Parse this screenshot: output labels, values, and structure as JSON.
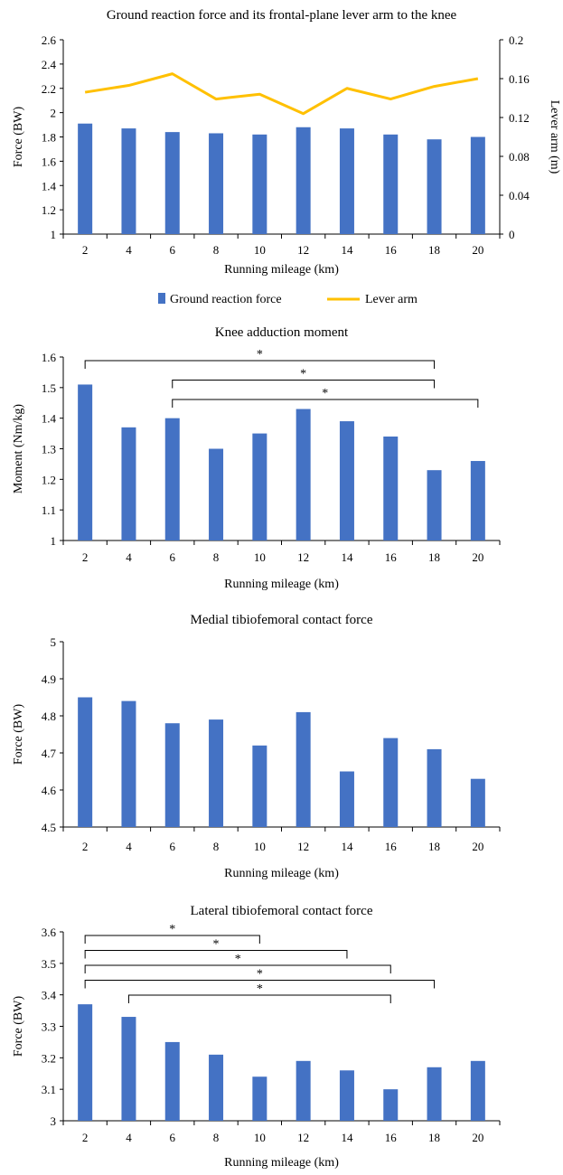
{
  "bar_color": "#4472C4",
  "line_color": "#FFC000",
  "axis_color": "#000000",
  "chart_data": [
    {
      "type": "bar+line",
      "title": "Ground reaction force and its frontal-plane lever arm to the knee",
      "xlabel": "Running mileage (km)",
      "ylabel": "Force (BW)",
      "y2label": "Lever arm (m)",
      "categories": [
        "2",
        "4",
        "6",
        "8",
        "10",
        "12",
        "14",
        "16",
        "18",
        "20"
      ],
      "ylim": [
        1,
        2.6
      ],
      "yticks": [
        "1",
        "1.2",
        "1.4",
        "1.6",
        "1.8",
        "2",
        "2.2",
        "2.4",
        "2.6"
      ],
      "y2lim": [
        0,
        0.2
      ],
      "y2ticks": [
        "0",
        "0.04",
        "0.08",
        "0.12",
        "0.16",
        "0.2"
      ],
      "series": [
        {
          "name": "Ground reaction force",
          "kind": "bar",
          "axis": "left",
          "values": [
            1.91,
            1.87,
            1.84,
            1.83,
            1.82,
            1.88,
            1.87,
            1.82,
            1.78,
            1.8
          ]
        },
        {
          "name": "Lever arm",
          "kind": "line",
          "axis": "right",
          "values": [
            0.146,
            0.153,
            0.165,
            0.139,
            0.144,
            0.124,
            0.15,
            0.139,
            0.152,
            0.16
          ]
        }
      ],
      "legend": "bottom",
      "grid": false
    },
    {
      "type": "bar",
      "title": "Knee adduction moment",
      "xlabel": "Running mileage (km)",
      "ylabel": "Moment (Nm/kg)",
      "categories": [
        "2",
        "4",
        "6",
        "8",
        "10",
        "12",
        "14",
        "16",
        "18",
        "20"
      ],
      "values": [
        1.51,
        1.37,
        1.4,
        1.3,
        1.35,
        1.43,
        1.39,
        1.34,
        1.23,
        1.26
      ],
      "ylim": [
        1,
        1.6
      ],
      "yticks": [
        "1",
        "1.1",
        "1.2",
        "1.3",
        "1.4",
        "1.5",
        "1.6"
      ],
      "grid": false,
      "annotations": [
        {
          "from": "2",
          "to": "18",
          "label": "*"
        },
        {
          "from": "6",
          "to": "18",
          "label": "*"
        },
        {
          "from": "6",
          "to": "20",
          "label": "*"
        }
      ]
    },
    {
      "type": "bar",
      "title": "Medial tibiofemoral contact force",
      "xlabel": "Running mileage (km)",
      "ylabel": "Force (BW)",
      "categories": [
        "2",
        "4",
        "6",
        "8",
        "10",
        "12",
        "14",
        "16",
        "18",
        "20"
      ],
      "values": [
        4.85,
        4.84,
        4.78,
        4.79,
        4.72,
        4.81,
        4.65,
        4.74,
        4.71,
        4.63
      ],
      "ylim": [
        4.5,
        5
      ],
      "yticks": [
        "4.5",
        "4.6",
        "4.7",
        "4.8",
        "4.9",
        "5"
      ],
      "grid": false,
      "annotations": []
    },
    {
      "type": "bar",
      "title": "Lateral tibiofemoral contact force",
      "xlabel": "Running mileage (km)",
      "ylabel": "Force (BW)",
      "categories": [
        "2",
        "4",
        "6",
        "8",
        "10",
        "12",
        "14",
        "16",
        "18",
        "20"
      ],
      "values": [
        3.37,
        3.33,
        3.25,
        3.21,
        3.14,
        3.19,
        3.16,
        3.1,
        3.17,
        3.19
      ],
      "ylim": [
        3,
        3.6
      ],
      "yticks": [
        "3",
        "3.1",
        "3.2",
        "3.3",
        "3.4",
        "3.5",
        "3.6"
      ],
      "grid": false,
      "annotations": [
        {
          "from": "2",
          "to": "10",
          "label": "*"
        },
        {
          "from": "2",
          "to": "14",
          "label": "*"
        },
        {
          "from": "2",
          "to": "16",
          "label": "*"
        },
        {
          "from": "2",
          "to": "18",
          "label": "*"
        },
        {
          "from": "4",
          "to": "16",
          "label": "*"
        }
      ]
    }
  ]
}
